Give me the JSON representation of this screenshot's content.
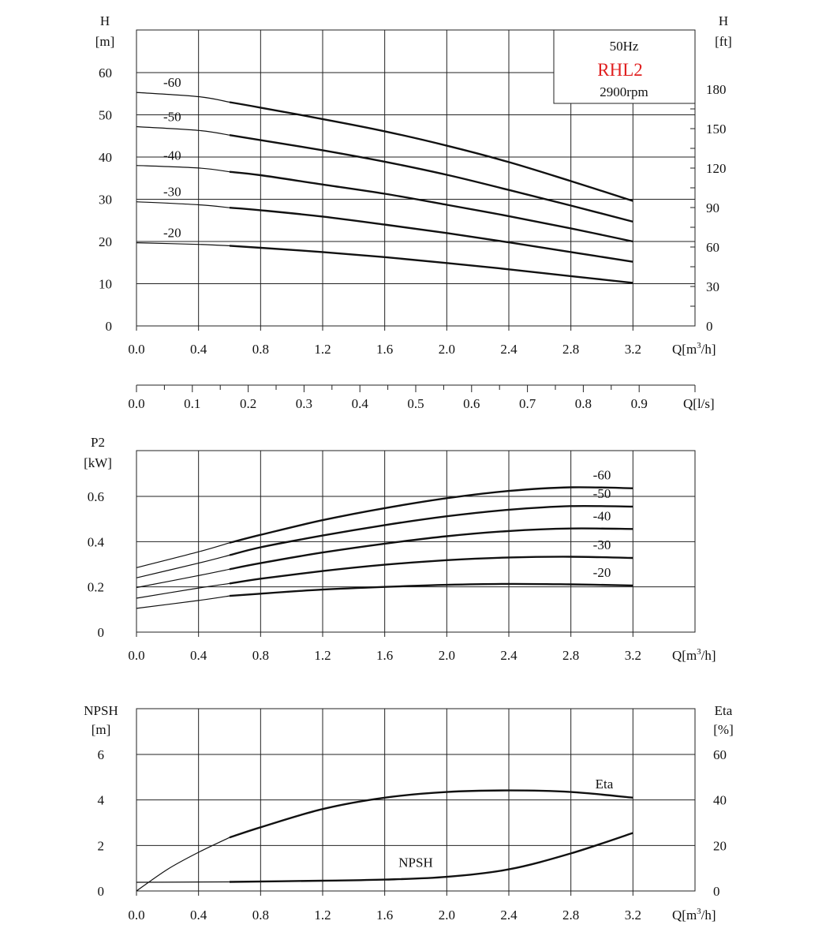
{
  "chart_data": [
    {
      "type": "line",
      "id": "head",
      "ylabel_left": [
        "H",
        "[m]"
      ],
      "ylabel_right": [
        "H",
        "[ft]"
      ],
      "xlabel": "Q[m³/h]",
      "xlabel_parts": {
        "pre": "Q[m",
        "sup": "3",
        "post": "/h]"
      },
      "x_ticks": [
        "0.0",
        "0.4",
        "0.8",
        "1.2",
        "1.6",
        "2.0",
        "2.4",
        "2.8",
        "3.2"
      ],
      "y_ticks_left": [
        "0",
        "10",
        "20",
        "30",
        "40",
        "50",
        "60"
      ],
      "y_ticks_right": [
        "0",
        "30",
        "60",
        "90",
        "120",
        "150",
        "180"
      ],
      "xlim": [
        0,
        3.6
      ],
      "ylim": [
        0,
        70
      ],
      "grid": true,
      "secondary_axis": {
        "xlabel": "Q[l/s]",
        "ticks": [
          "0.0",
          "0.1",
          "0.2",
          "0.3",
          "0.4",
          "0.5",
          "0.6",
          "0.7",
          "0.8",
          "0.9"
        ]
      },
      "legend_box": {
        "frequency": "50Hz",
        "model": "RHL2",
        "speed": "2900rpm",
        "model_color": "#e02020"
      },
      "series": [
        {
          "name": "-60",
          "points": [
            [
              0,
              55.3
            ],
            [
              0.4,
              54.3
            ],
            [
              0.6,
              53.0
            ],
            [
              0.8,
              51.7
            ],
            [
              1.2,
              49.0
            ],
            [
              1.6,
              46.1
            ],
            [
              2.0,
              42.7
            ],
            [
              2.4,
              38.8
            ],
            [
              2.8,
              34.3
            ],
            [
              3.2,
              29.6
            ]
          ]
        },
        {
          "name": "-50",
          "points": [
            [
              0,
              47.2
            ],
            [
              0.4,
              46.3
            ],
            [
              0.6,
              45.2
            ],
            [
              0.8,
              44.0
            ],
            [
              1.2,
              41.6
            ],
            [
              1.6,
              38.9
            ],
            [
              2.0,
              35.8
            ],
            [
              2.4,
              32.2
            ],
            [
              2.8,
              28.5
            ],
            [
              3.2,
              24.7
            ]
          ]
        },
        {
          "name": "-40",
          "points": [
            [
              0,
              38.0
            ],
            [
              0.4,
              37.4
            ],
            [
              0.6,
              36.5
            ],
            [
              0.8,
              35.7
            ],
            [
              1.2,
              33.5
            ],
            [
              1.6,
              31.3
            ],
            [
              2.0,
              28.7
            ],
            [
              2.4,
              26.0
            ],
            [
              2.8,
              23.1
            ],
            [
              3.2,
              20.0
            ]
          ]
        },
        {
          "name": "-30",
          "points": [
            [
              0,
              29.4
            ],
            [
              0.4,
              28.7
            ],
            [
              0.6,
              28.0
            ],
            [
              0.8,
              27.4
            ],
            [
              1.2,
              25.9
            ],
            [
              1.6,
              24.0
            ],
            [
              2.0,
              22.0
            ],
            [
              2.4,
              19.8
            ],
            [
              2.8,
              17.5
            ],
            [
              3.2,
              15.2
            ]
          ]
        },
        {
          "name": "-20",
          "points": [
            [
              0,
              19.7
            ],
            [
              0.4,
              19.3
            ],
            [
              0.6,
              19.0
            ],
            [
              0.8,
              18.5
            ],
            [
              1.2,
              17.5
            ],
            [
              1.6,
              16.3
            ],
            [
              2.0,
              14.9
            ],
            [
              2.4,
              13.4
            ],
            [
              2.8,
              11.8
            ],
            [
              3.2,
              10.2
            ]
          ]
        }
      ]
    },
    {
      "type": "line",
      "id": "power",
      "ylabel_left": [
        "P2",
        "[kW]"
      ],
      "xlabel": "Q[m³/h]",
      "xlabel_parts": {
        "pre": "Q[m",
        "sup": "3",
        "post": "/h]"
      },
      "x_ticks": [
        "0.0",
        "0.4",
        "0.8",
        "1.2",
        "1.6",
        "2.0",
        "2.4",
        "2.8",
        "3.2"
      ],
      "y_ticks_left": [
        "0",
        "0.2",
        "0.4",
        "0.6"
      ],
      "xlim": [
        0,
        3.6
      ],
      "ylim": [
        0,
        0.8
      ],
      "grid": true,
      "series": [
        {
          "name": "-60",
          "points": [
            [
              0,
              0.285
            ],
            [
              0.4,
              0.355
            ],
            [
              0.6,
              0.395
            ],
            [
              0.8,
              0.43
            ],
            [
              1.2,
              0.495
            ],
            [
              1.6,
              0.548
            ],
            [
              2.0,
              0.592
            ],
            [
              2.4,
              0.624
            ],
            [
              2.8,
              0.64
            ],
            [
              3.2,
              0.636
            ]
          ]
        },
        {
          "name": "-50",
          "points": [
            [
              0,
              0.24
            ],
            [
              0.4,
              0.305
            ],
            [
              0.6,
              0.34
            ],
            [
              0.8,
              0.375
            ],
            [
              1.2,
              0.427
            ],
            [
              1.6,
              0.473
            ],
            [
              2.0,
              0.512
            ],
            [
              2.4,
              0.541
            ],
            [
              2.8,
              0.557
            ],
            [
              3.2,
              0.555
            ]
          ]
        },
        {
          "name": "-40",
          "points": [
            [
              0,
              0.197
            ],
            [
              0.4,
              0.25
            ],
            [
              0.6,
              0.278
            ],
            [
              0.8,
              0.305
            ],
            [
              1.2,
              0.352
            ],
            [
              1.6,
              0.391
            ],
            [
              2.0,
              0.424
            ],
            [
              2.4,
              0.447
            ],
            [
              2.8,
              0.458
            ],
            [
              3.2,
              0.456
            ]
          ]
        },
        {
          "name": "-30",
          "points": [
            [
              0,
              0.15
            ],
            [
              0.4,
              0.195
            ],
            [
              0.6,
              0.215
            ],
            [
              0.8,
              0.236
            ],
            [
              1.2,
              0.27
            ],
            [
              1.6,
              0.298
            ],
            [
              2.0,
              0.318
            ],
            [
              2.4,
              0.33
            ],
            [
              2.8,
              0.333
            ],
            [
              3.2,
              0.328
            ]
          ]
        },
        {
          "name": "-20",
          "points": [
            [
              0,
              0.105
            ],
            [
              0.4,
              0.14
            ],
            [
              0.6,
              0.16
            ],
            [
              0.8,
              0.17
            ],
            [
              1.2,
              0.188
            ],
            [
              1.6,
              0.2
            ],
            [
              2.0,
              0.209
            ],
            [
              2.4,
              0.213
            ],
            [
              2.8,
              0.211
            ],
            [
              3.2,
              0.206
            ]
          ]
        }
      ]
    },
    {
      "type": "line",
      "id": "npsh_eta",
      "ylabel_left": [
        "NPSH",
        "[m]"
      ],
      "ylabel_right": [
        "Eta",
        "[%]"
      ],
      "xlabel": "Q[m³/h]",
      "xlabel_parts": {
        "pre": "Q[m",
        "sup": "3",
        "post": "/h]"
      },
      "x_ticks": [
        "0.0",
        "0.4",
        "0.8",
        "1.2",
        "1.6",
        "2.0",
        "2.4",
        "2.8",
        "3.2"
      ],
      "y_ticks_left": [
        "0",
        "2",
        "4",
        "6"
      ],
      "y_ticks_right": [
        "0",
        "20",
        "40",
        "60"
      ],
      "xlim": [
        0,
        3.6
      ],
      "ylim": [
        0,
        8
      ],
      "grid": true,
      "series": [
        {
          "name": "Eta",
          "axis": "right",
          "points": [
            [
              0,
              0
            ],
            [
              0.2,
              9.5
            ],
            [
              0.4,
              17.0
            ],
            [
              0.6,
              23.5
            ],
            [
              0.8,
              28.0
            ],
            [
              1.2,
              36.0
            ],
            [
              1.6,
              41.0
            ],
            [
              2.0,
              43.5
            ],
            [
              2.4,
              44.2
            ],
            [
              2.8,
              43.5
            ],
            [
              3.2,
              41.0
            ]
          ]
        },
        {
          "name": "NPSH",
          "axis": "left",
          "points": [
            [
              0,
              0.38
            ],
            [
              0.6,
              0.4
            ],
            [
              1.2,
              0.45
            ],
            [
              1.6,
              0.5
            ],
            [
              2.0,
              0.62
            ],
            [
              2.4,
              0.95
            ],
            [
              2.8,
              1.65
            ],
            [
              3.2,
              2.55
            ]
          ]
        }
      ]
    }
  ]
}
